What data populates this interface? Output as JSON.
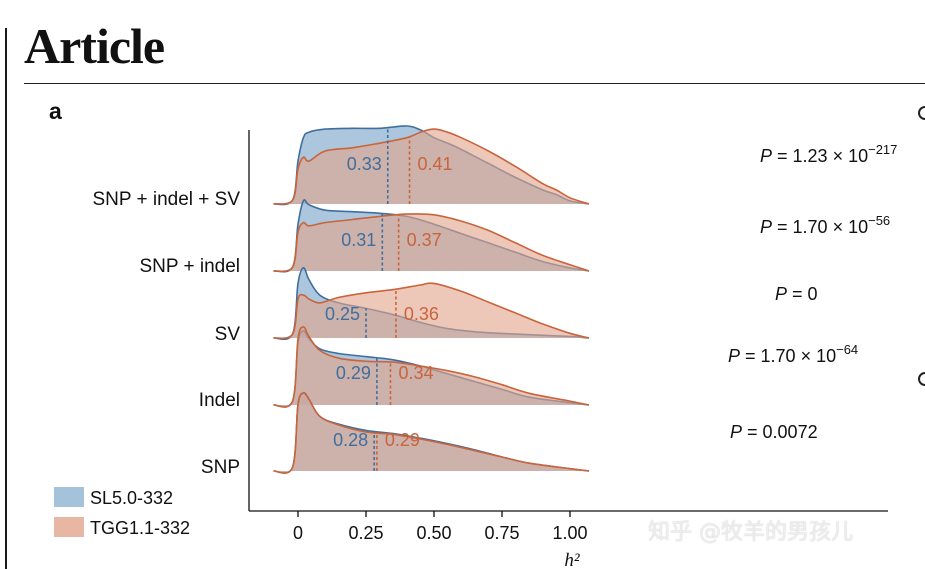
{
  "header": {
    "title": "Article",
    "panel_label": "a"
  },
  "watermark": "知乎 @牧羊的男孩儿",
  "colors": {
    "SL5.0-332": "#8fb3d2",
    "TGG1.1-332": "#e2a58c",
    "SL5.0-332-line": "#3f6f9e",
    "TGG1.1-332-line": "#c9643b"
  },
  "chart_data": {
    "type": "ridgeline",
    "xlabel": "h²",
    "ylabel": "",
    "xlim": [
      -0.09,
      1.07
    ],
    "xticks": [
      0,
      0.25,
      0.5,
      0.75,
      1.0
    ],
    "xtick_labels": [
      "0",
      "0.25",
      "0.50",
      "0.75",
      "1.00"
    ],
    "legend_position": "bottom-left",
    "series_names": [
      "SL5.0-332",
      "TGG1.1-332"
    ],
    "ridges": [
      {
        "category": "SNP + indel + SV",
        "p_value": "P = 1.23 × 10^−217",
        "p_base": "P = 1.23 × 10",
        "p_exp": "−217",
        "SL5.0-332": {
          "median": 0.33,
          "median_label": "0.33",
          "density": [
            [
              -0.09,
              0
            ],
            [
              -0.02,
              0.05
            ],
            [
              0,
              0.55
            ],
            [
              0.02,
              0.85
            ],
            [
              0.04,
              0.92
            ],
            [
              0.1,
              0.96
            ],
            [
              0.2,
              0.97
            ],
            [
              0.3,
              0.97
            ],
            [
              0.4,
              1.0
            ],
            [
              0.45,
              0.95
            ],
            [
              0.5,
              0.85
            ],
            [
              0.55,
              0.78
            ],
            [
              0.6,
              0.7
            ],
            [
              0.7,
              0.52
            ],
            [
              0.8,
              0.34
            ],
            [
              0.9,
              0.18
            ],
            [
              0.95,
              0.12
            ],
            [
              1.0,
              0.04
            ],
            [
              1.07,
              0
            ]
          ]
        },
        "TGG1.1-332": {
          "median": 0.41,
          "median_label": "0.41",
          "density": [
            [
              -0.09,
              0
            ],
            [
              -0.02,
              0.05
            ],
            [
              0,
              0.45
            ],
            [
              0.02,
              0.6
            ],
            [
              0.04,
              0.55
            ],
            [
              0.1,
              0.68
            ],
            [
              0.2,
              0.72
            ],
            [
              0.3,
              0.78
            ],
            [
              0.4,
              0.85
            ],
            [
              0.45,
              0.92
            ],
            [
              0.5,
              0.96
            ],
            [
              0.55,
              0.92
            ],
            [
              0.6,
              0.85
            ],
            [
              0.7,
              0.68
            ],
            [
              0.8,
              0.48
            ],
            [
              0.9,
              0.26
            ],
            [
              0.95,
              0.18
            ],
            [
              1.0,
              0.08
            ],
            [
              1.07,
              0
            ]
          ]
        }
      },
      {
        "category": "SNP + indel",
        "p_value": "P = 1.70 × 10^−56",
        "p_base": "P = 1.70 × 10",
        "p_exp": "−56",
        "SL5.0-332": {
          "median": 0.31,
          "median_label": "0.31",
          "density": [
            [
              -0.09,
              0
            ],
            [
              -0.02,
              0.05
            ],
            [
              0,
              0.6
            ],
            [
              0.02,
              0.9
            ],
            [
              0.04,
              0.85
            ],
            [
              0.1,
              0.78
            ],
            [
              0.2,
              0.76
            ],
            [
              0.3,
              0.74
            ],
            [
              0.4,
              0.7
            ],
            [
              0.5,
              0.6
            ],
            [
              0.6,
              0.48
            ],
            [
              0.7,
              0.36
            ],
            [
              0.8,
              0.24
            ],
            [
              0.9,
              0.12
            ],
            [
              1.0,
              0.04
            ],
            [
              1.07,
              0
            ]
          ]
        },
        "TGG1.1-332": {
          "median": 0.37,
          "median_label": "0.37",
          "density": [
            [
              -0.09,
              0
            ],
            [
              -0.02,
              0.05
            ],
            [
              0,
              0.5
            ],
            [
              0.02,
              0.62
            ],
            [
              0.04,
              0.58
            ],
            [
              0.1,
              0.62
            ],
            [
              0.2,
              0.66
            ],
            [
              0.3,
              0.7
            ],
            [
              0.4,
              0.73
            ],
            [
              0.5,
              0.72
            ],
            [
              0.6,
              0.64
            ],
            [
              0.7,
              0.52
            ],
            [
              0.8,
              0.36
            ],
            [
              0.9,
              0.2
            ],
            [
              1.0,
              0.08
            ],
            [
              1.07,
              0
            ]
          ]
        }
      },
      {
        "category": "SV",
        "p_value": "P = 0",
        "p_base": "P = 0",
        "p_exp": "",
        "SL5.0-332": {
          "median": 0.25,
          "median_label": "0.25",
          "density": [
            [
              -0.09,
              0
            ],
            [
              -0.02,
              0.05
            ],
            [
              0,
              0.7
            ],
            [
              0.02,
              0.9
            ],
            [
              0.04,
              0.75
            ],
            [
              0.08,
              0.55
            ],
            [
              0.15,
              0.45
            ],
            [
              0.25,
              0.38
            ],
            [
              0.35,
              0.3
            ],
            [
              0.45,
              0.2
            ],
            [
              0.55,
              0.12
            ],
            [
              0.65,
              0.08
            ],
            [
              0.8,
              0.05
            ],
            [
              1.0,
              0.02
            ],
            [
              1.07,
              0
            ]
          ]
        },
        "TGG1.1-332": {
          "median": 0.36,
          "median_label": "0.36",
          "density": [
            [
              -0.09,
              0
            ],
            [
              -0.02,
              0.05
            ],
            [
              0,
              0.5
            ],
            [
              0.02,
              0.55
            ],
            [
              0.04,
              0.5
            ],
            [
              0.08,
              0.45
            ],
            [
              0.15,
              0.52
            ],
            [
              0.25,
              0.58
            ],
            [
              0.35,
              0.62
            ],
            [
              0.45,
              0.68
            ],
            [
              0.5,
              0.7
            ],
            [
              0.6,
              0.6
            ],
            [
              0.7,
              0.46
            ],
            [
              0.8,
              0.32
            ],
            [
              0.9,
              0.18
            ],
            [
              1.0,
              0.06
            ],
            [
              1.07,
              0
            ]
          ]
        }
      },
      {
        "category": "Indel",
        "p_value": "P = 1.70 × 10^−64",
        "p_base": "P = 1.70 × 10",
        "p_exp": "−64",
        "SL5.0-332": {
          "median": 0.29,
          "median_label": "0.29",
          "density": [
            [
              -0.09,
              0
            ],
            [
              -0.02,
              0.05
            ],
            [
              0,
              0.8
            ],
            [
              0.02,
              0.95
            ],
            [
              0.04,
              0.85
            ],
            [
              0.08,
              0.72
            ],
            [
              0.15,
              0.66
            ],
            [
              0.25,
              0.62
            ],
            [
              0.35,
              0.58
            ],
            [
              0.45,
              0.5
            ],
            [
              0.55,
              0.4
            ],
            [
              0.65,
              0.3
            ],
            [
              0.75,
              0.2
            ],
            [
              0.85,
              0.1
            ],
            [
              1.0,
              0.03
            ],
            [
              1.07,
              0
            ]
          ]
        },
        "TGG1.1-332": {
          "median": 0.34,
          "median_label": "0.34",
          "density": [
            [
              -0.09,
              0
            ],
            [
              -0.02,
              0.05
            ],
            [
              0,
              0.85
            ],
            [
              0.02,
              1.0
            ],
            [
              0.04,
              0.88
            ],
            [
              0.08,
              0.7
            ],
            [
              0.15,
              0.6
            ],
            [
              0.25,
              0.56
            ],
            [
              0.35,
              0.55
            ],
            [
              0.45,
              0.5
            ],
            [
              0.55,
              0.44
            ],
            [
              0.65,
              0.36
            ],
            [
              0.75,
              0.26
            ],
            [
              0.85,
              0.15
            ],
            [
              1.0,
              0.05
            ],
            [
              1.07,
              0
            ]
          ]
        }
      },
      {
        "category": "SNP",
        "p_value": "P = 0.0072",
        "p_base": "P = 0.0072",
        "p_exp": "",
        "SL5.0-332": {
          "median": 0.28,
          "median_label": "0.28",
          "density": [
            [
              -0.09,
              0
            ],
            [
              -0.02,
              0.05
            ],
            [
              0,
              0.85
            ],
            [
              0.02,
              1.0
            ],
            [
              0.04,
              0.92
            ],
            [
              0.08,
              0.7
            ],
            [
              0.15,
              0.6
            ],
            [
              0.25,
              0.52
            ],
            [
              0.35,
              0.48
            ],
            [
              0.45,
              0.42
            ],
            [
              0.55,
              0.35
            ],
            [
              0.65,
              0.27
            ],
            [
              0.75,
              0.18
            ],
            [
              0.85,
              0.1
            ],
            [
              1.0,
              0.03
            ],
            [
              1.07,
              0
            ]
          ]
        },
        "TGG1.1-332": {
          "median": 0.29,
          "median_label": "0.29",
          "density": [
            [
              -0.09,
              0
            ],
            [
              -0.02,
              0.05
            ],
            [
              0,
              0.85
            ],
            [
              0.02,
              1.0
            ],
            [
              0.04,
              0.92
            ],
            [
              0.08,
              0.7
            ],
            [
              0.15,
              0.59
            ],
            [
              0.25,
              0.5
            ],
            [
              0.35,
              0.47
            ],
            [
              0.45,
              0.41
            ],
            [
              0.55,
              0.34
            ],
            [
              0.65,
              0.26
            ],
            [
              0.75,
              0.18
            ],
            [
              0.85,
              0.1
            ],
            [
              1.0,
              0.03
            ],
            [
              1.07,
              0
            ]
          ]
        }
      }
    ]
  }
}
